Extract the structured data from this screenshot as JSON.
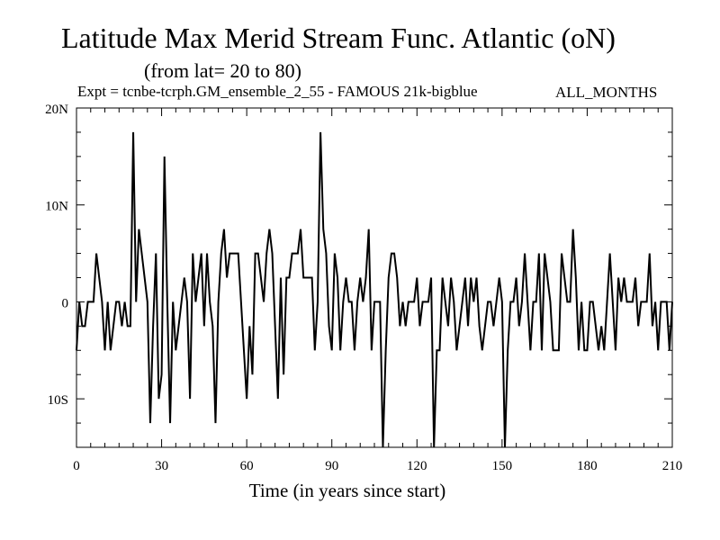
{
  "header": {
    "title": "Latitude Max Merid Stream Func. Atlantic (oN)",
    "subtitle": "(from lat= 20 to 80)",
    "expt": "Expt = tcnbe-tcrph.GM_ensemble_2_55 - FAMOUS 21k-bigblue",
    "months": "ALL_MONTHS"
  },
  "chart_data": {
    "type": "line",
    "title": "Latitude Max Merid Stream Func. Atlantic (oN)",
    "subtitle": "(from lat= 20 to 80)",
    "xlabel": "Time (in years since start)",
    "ylabel": "",
    "xlim": [
      0,
      210
    ],
    "ylim": [
      -15,
      20
    ],
    "x_ticks": [
      0,
      30,
      60,
      90,
      120,
      150,
      180,
      210
    ],
    "x_tick_labels": [
      "0",
      "30",
      "60",
      "90",
      "120",
      "150",
      "180",
      "210"
    ],
    "y_ticks": [
      -10,
      0,
      10,
      20
    ],
    "y_tick_labels": [
      "10S",
      "0",
      "10N",
      "20N"
    ],
    "series": [
      {
        "name": "ALL_MONTHS",
        "x_start": 0,
        "x_step": 1,
        "values": [
          -5,
          0,
          -2.5,
          -2.5,
          0,
          0,
          0,
          5,
          2.5,
          0,
          -5,
          0,
          -5,
          -2.5,
          0,
          0,
          -2.5,
          0,
          -2.5,
          -2.5,
          17.5,
          0,
          7.5,
          5,
          2.5,
          0,
          -12.5,
          -2.5,
          5,
          -10,
          -7.5,
          15,
          0,
          -12.5,
          0,
          -5,
          -2.5,
          0,
          2.5,
          0,
          -10,
          5,
          0,
          2.5,
          5,
          -2.5,
          5,
          0,
          -2.5,
          -12.5,
          0,
          5,
          7.5,
          2.5,
          5,
          5,
          5,
          5,
          0,
          -5,
          -10,
          -2.5,
          -7.5,
          5,
          5,
          2.5,
          0,
          5,
          7.5,
          5,
          -2.5,
          -10,
          2.5,
          -7.5,
          2.5,
          2.5,
          5,
          5,
          5,
          7.5,
          2.5,
          2.5,
          2.5,
          2.5,
          -5,
          0,
          17.5,
          7.5,
          5,
          -2.5,
          -5,
          5,
          2.5,
          -5,
          0,
          2.5,
          0,
          0,
          -5,
          0,
          2.5,
          0,
          2.5,
          7.5,
          -5,
          0,
          0,
          0,
          -15,
          -5,
          2.5,
          5,
          5,
          2.5,
          -2.5,
          0,
          -2.5,
          0,
          0,
          0,
          2.5,
          -2.5,
          0,
          0,
          0,
          2.5,
          -15,
          -5,
          -5,
          2.5,
          0,
          -2.5,
          2.5,
          0,
          -5,
          -2.5,
          0,
          2.5,
          -2.5,
          2.5,
          0,
          2.5,
          -2.5,
          -5,
          -2.5,
          0,
          0,
          -2.5,
          0,
          2.5,
          0,
          -15,
          -5,
          0,
          0,
          2.5,
          -2.5,
          0,
          5,
          0,
          -5,
          0,
          0,
          5,
          -5,
          5,
          2.5,
          0,
          -5,
          -5,
          -5,
          5,
          2.5,
          0,
          0,
          7.5,
          2.5,
          -5,
          0,
          -5,
          -5,
          0,
          0,
          -2.5,
          -5,
          -2.5,
          -5,
          0,
          5,
          0,
          -5,
          2.5,
          0,
          2.5,
          0,
          0,
          0,
          2.5,
          -2.5,
          0,
          0,
          0,
          5,
          -2.5,
          0,
          -5,
          0,
          0,
          0,
          -5,
          0
        ]
      }
    ]
  }
}
